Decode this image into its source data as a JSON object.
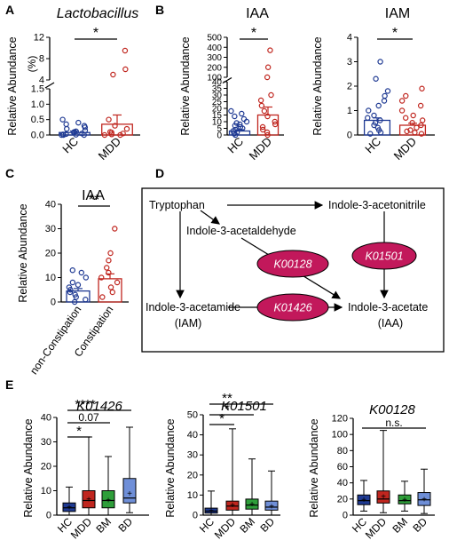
{
  "colors": {
    "hc": "#1f3a93",
    "mdd": "#c0261f",
    "bm": "#2e9e3a",
    "bd": "#6f8fd8",
    "enzyme": "#c2185b"
  },
  "panel_letters": [
    "A",
    "B",
    "C",
    "D",
    "E"
  ],
  "chart_data": [
    {
      "panel": "A",
      "type": "bar",
      "title": "Lactobacillus",
      "ylabel": "Relative Abundance",
      "yunit": "(%)",
      "categories": [
        "HC",
        "MDD"
      ],
      "ylim": [
        0,
        12
      ],
      "axis_break": [
        1.5,
        4
      ],
      "yticks": [
        "0.0",
        "0.5",
        "1.0",
        "1.5",
        "4",
        "8",
        "12"
      ],
      "series": [
        {
          "values": [
            0.08,
            0.35
          ],
          "errors": [
            0.05,
            0.3
          ]
        }
      ],
      "points": {
        "HC": [
          0.0,
          0.0,
          0.0,
          0.01,
          0.02,
          0.03,
          0.05,
          0.08,
          0.1,
          0.12,
          0.15,
          0.2,
          0.25,
          0.3,
          0.35,
          0.4,
          0.5
        ],
        "MDD": [
          0.0,
          0.0,
          0.02,
          0.05,
          0.08,
          0.1,
          0.2,
          0.3,
          0.5,
          5.0,
          6.0,
          9.5
        ]
      },
      "significance": [
        {
          "pair": [
            "HC",
            "MDD"
          ],
          "label": "*"
        }
      ]
    },
    {
      "panel": "B",
      "type": "bar",
      "title": "IAA",
      "ylabel": "Relative Abundance",
      "categories": [
        "HC",
        "MDD"
      ],
      "ylim": [
        0,
        500
      ],
      "axis_break": [
        40,
        100
      ],
      "yticks": [
        "0",
        "5",
        "10",
        "15",
        "20",
        "25",
        "30",
        "35",
        "40",
        "100",
        "200",
        "300",
        "400",
        "500"
      ],
      "series": [
        {
          "values": [
            3.0,
            15.0
          ],
          "errors": [
            1.0,
            6.0
          ]
        }
      ],
      "points": {
        "HC": [
          0,
          1,
          2,
          3,
          4,
          5,
          6,
          7,
          8,
          9,
          10,
          12,
          14,
          16,
          18
        ],
        "MDD": [
          0,
          2,
          4,
          6,
          8,
          10,
          14,
          18,
          22,
          26,
          30,
          100,
          200,
          370
        ]
      },
      "significance": [
        {
          "pair": [
            "HC",
            "MDD"
          ],
          "label": "*"
        }
      ]
    },
    {
      "panel": "B",
      "type": "bar",
      "title": "IAM",
      "ylabel": "Relative Abundance",
      "categories": [
        "HC",
        "MDD"
      ],
      "ylim": [
        0,
        4
      ],
      "yticks": [
        "0",
        "1",
        "2",
        "3",
        "4"
      ],
      "series": [
        {
          "values": [
            0.6,
            0.4
          ],
          "errors": [
            0.1,
            0.08
          ]
        }
      ],
      "points": {
        "HC": [
          0.05,
          0.1,
          0.2,
          0.3,
          0.4,
          0.5,
          0.6,
          0.7,
          0.8,
          1.0,
          1.2,
          1.4,
          1.6,
          1.8,
          2.3,
          3.0
        ],
        "MDD": [
          0.05,
          0.1,
          0.15,
          0.2,
          0.3,
          0.4,
          0.5,
          0.6,
          0.7,
          0.8,
          1.0,
          1.2,
          1.4,
          1.6,
          1.9
        ]
      },
      "significance": [
        {
          "pair": [
            "HC",
            "MDD"
          ],
          "label": "*"
        }
      ]
    },
    {
      "panel": "C",
      "type": "bar",
      "title": "IAA",
      "ylabel": "Relative Abundance",
      "categories": [
        "non-Constipation",
        "Constipation"
      ],
      "ylim": [
        0,
        40
      ],
      "yticks": [
        "0",
        "10",
        "20",
        "30",
        "40"
      ],
      "series": [
        {
          "values": [
            4.5,
            9.5
          ],
          "errors": [
            1.0,
            2.0
          ]
        }
      ],
      "points": {
        "non-Constipation": [
          0,
          1,
          2,
          3,
          4,
          5,
          6,
          7,
          8,
          10,
          12,
          13
        ],
        "Constipation": [
          2,
          4,
          6,
          8,
          10,
          12,
          14,
          17,
          20,
          30
        ]
      },
      "significance": [
        {
          "pair": [
            "non-Constipation",
            "Constipation"
          ],
          "label": "**"
        }
      ]
    },
    {
      "panel": "E",
      "type": "box",
      "title": "K01426",
      "ylabel": "Relative Abundance",
      "categories": [
        "HC",
        "MDD",
        "BM",
        "BD"
      ],
      "ylim": [
        0,
        40
      ],
      "yticks": [
        "0",
        "10",
        "20",
        "30",
        "40"
      ],
      "boxes": [
        {
          "min": 0,
          "q1": 1.5,
          "median": 3,
          "q3": 5,
          "max": 11.5,
          "mean": 3.2
        },
        {
          "min": 0,
          "q1": 3,
          "median": 6,
          "q3": 10,
          "max": 32,
          "mean": 6.5
        },
        {
          "min": 0,
          "q1": 3,
          "median": 6,
          "q3": 10,
          "max": 24,
          "mean": 6.2
        },
        {
          "min": 1,
          "q1": 5,
          "median": 7,
          "q3": 15,
          "max": 36,
          "mean": 9
        }
      ],
      "significance": [
        {
          "pair": [
            "HC",
            "MDD"
          ],
          "label": "*"
        },
        {
          "pair": [
            "HC",
            "BM"
          ],
          "label": "0.07"
        },
        {
          "pair": [
            "HC",
            "BD"
          ],
          "label": "****"
        }
      ]
    },
    {
      "panel": "E",
      "type": "box",
      "title": "K01501",
      "ylabel": "Relative Abundance",
      "categories": [
        "HC",
        "MDD",
        "BM",
        "BD"
      ],
      "ylim": [
        0,
        50
      ],
      "yticks": [
        "0",
        "10",
        "20",
        "30",
        "40",
        "50"
      ],
      "boxes": [
        {
          "min": 0,
          "q1": 1,
          "median": 2,
          "q3": 3.5,
          "max": 12,
          "mean": 2.3
        },
        {
          "min": 0,
          "q1": 2.5,
          "median": 4.5,
          "q3": 7,
          "max": 43,
          "mean": 5
        },
        {
          "min": 0,
          "q1": 3,
          "median": 5,
          "q3": 8,
          "max": 28,
          "mean": 5.5
        },
        {
          "min": 0,
          "q1": 2.5,
          "median": 4,
          "q3": 7,
          "max": 22,
          "mean": 4.5
        }
      ],
      "significance": [
        {
          "pair": [
            "HC",
            "MDD"
          ],
          "label": "*"
        },
        {
          "pair": [
            "HC",
            "BM"
          ],
          "label": "*"
        },
        {
          "pair": [
            "HC",
            "BD"
          ],
          "label": "**"
        }
      ]
    },
    {
      "panel": "E",
      "type": "box",
      "title": "K00128",
      "ylabel": "Relative Abundance",
      "categories": [
        "HC",
        "MDD",
        "BM",
        "BD"
      ],
      "ylim": [
        0,
        120
      ],
      "yticks": [
        "0",
        "20",
        "40",
        "60",
        "80",
        "100",
        "120"
      ],
      "boxes": [
        {
          "min": 5,
          "q1": 13,
          "median": 18,
          "q3": 25,
          "max": 43,
          "mean": 19
        },
        {
          "min": 3,
          "q1": 15,
          "median": 20,
          "q3": 30,
          "max": 105,
          "mean": 23
        },
        {
          "min": 5,
          "q1": 14,
          "median": 18,
          "q3": 25,
          "max": 42,
          "mean": 19
        },
        {
          "min": 2,
          "q1": 12,
          "median": 19,
          "q3": 28,
          "max": 57,
          "mean": 20
        }
      ],
      "significance": [
        {
          "pair": [
            "HC",
            "BD"
          ],
          "label": "n.s."
        }
      ]
    }
  ],
  "pathway": {
    "nodes": {
      "tryptophan": "Tryptophan",
      "acetonitrile": "Indole-3-acetonitrile",
      "acetaldehyde": "Indole-3-acetaldehyde",
      "acetamide": "Indole-3-acetamide",
      "acetamide_abbr": "(IAM)",
      "acetate": "Indole-3-acetate",
      "acetate_abbr": "(IAA)"
    },
    "enzymes": {
      "e1": "K00128",
      "e2": "K01501",
      "e3": "K01426"
    }
  }
}
